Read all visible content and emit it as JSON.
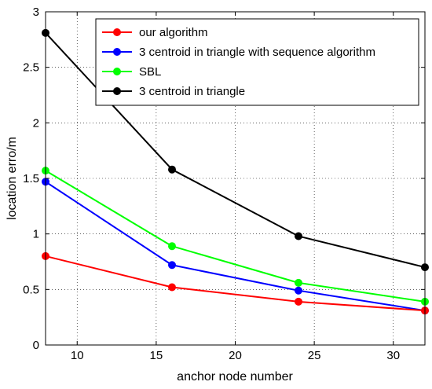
{
  "chart_data": {
    "type": "line",
    "xlabel": "anchor node number",
    "ylabel": "location erro/m",
    "xlim": [
      8,
      32
    ],
    "ylim": [
      0,
      3
    ],
    "xticks": [
      10,
      15,
      20,
      25,
      30
    ],
    "yticks": [
      0,
      0.5,
      1,
      1.5,
      2,
      2.5,
      3
    ],
    "xtick_labels": [
      "10",
      "15",
      "20",
      "25",
      "30"
    ],
    "ytick_labels": [
      "0",
      "0.5",
      "1",
      "1.5",
      "2",
      "2.5",
      "3"
    ],
    "grid": true,
    "legend_position": "top-right",
    "x": [
      8,
      16,
      24,
      32
    ],
    "series": [
      {
        "name": "our algorithm",
        "color": "#ff0000",
        "values": [
          0.8,
          0.52,
          0.39,
          0.31
        ]
      },
      {
        "name": "3 centroid in triangle with sequence algorithm",
        "color": "#0000ff",
        "values": [
          1.47,
          0.72,
          0.49,
          0.31
        ]
      },
      {
        "name": "SBL",
        "color": "#00ff00",
        "values": [
          1.57,
          0.89,
          0.56,
          0.39
        ]
      },
      {
        "name": "3 centroid in triangle",
        "color": "#000000",
        "values": [
          2.81,
          1.58,
          0.98,
          0.7
        ]
      }
    ]
  }
}
